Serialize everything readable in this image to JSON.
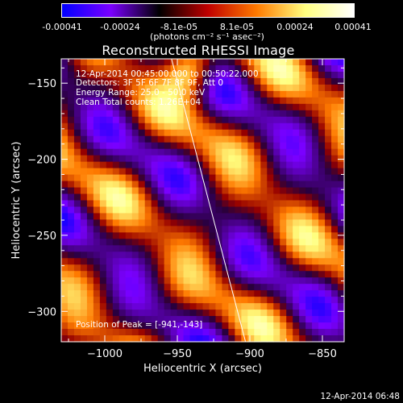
{
  "colorbar": {
    "ticks": [
      "-0.00041",
      "-0.00024",
      "-8.1e-05",
      "8.1e-05",
      "0.00024",
      "0.00041"
    ],
    "units": "(photons cm⁻² s⁻¹ asec⁻²)",
    "range": [
      -0.00041,
      0.00041
    ],
    "colormap": [
      "#0000ff",
      "#7a00ff",
      "#000000",
      "#c00000",
      "#ff7a00",
      "#ffff80",
      "#ffffff"
    ]
  },
  "chart_data": {
    "type": "heatmap",
    "title": "Reconstructed RHESSI Image",
    "xlabel": "Heliocentric X (arcsec)",
    "ylabel": "Heliocentric Y (arcsec)",
    "xlim": [
      -1030,
      -835
    ],
    "ylim": [
      -320,
      -134
    ],
    "x_ticks": [
      {
        "value": -1000,
        "label": "−1000"
      },
      {
        "value": -950,
        "label": "−950"
      },
      {
        "value": -900,
        "label": "−900"
      },
      {
        "value": -850,
        "label": "−850"
      }
    ],
    "y_ticks": [
      {
        "value": -150,
        "label": "−150"
      },
      {
        "value": -200,
        "label": "−200"
      },
      {
        "value": -250,
        "label": "−250"
      },
      {
        "value": -300,
        "label": "−300"
      }
    ],
    "peak": {
      "x": -941,
      "y": -143
    },
    "limb_line": [
      [
        -954,
        -134
      ],
      [
        -903,
        -320
      ]
    ],
    "info_lines": [
      "12-Apr-2014 00:45:00.000 to 00:50:22.000",
      "Detectors: 3F 5F 6F 7F 8F 9F, Att 0",
      "Energy Range: 25.0 - 50.0 keV",
      "Clean    Total counts: 1.26E+04"
    ],
    "peak_label": "Position of Peak = [-941,-143]"
  },
  "footer": {
    "timestamp": "12-Apr-2014 06:48"
  }
}
